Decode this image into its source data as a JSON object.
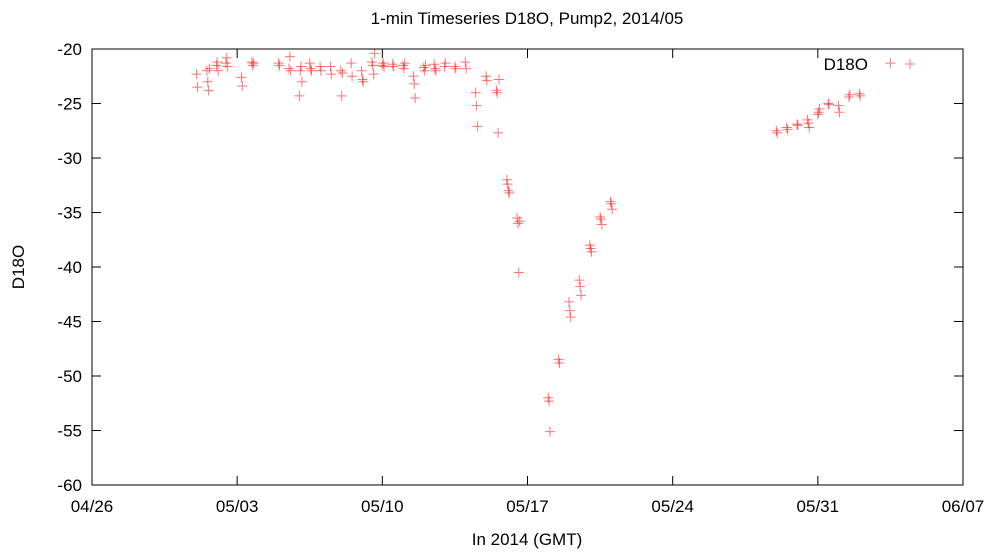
{
  "chart_data": {
    "type": "scatter",
    "title": "1-min Timeseries D18O, Pump2, 2014/05",
    "xlabel": "In 2014 (GMT)",
    "ylabel": "D18O",
    "x_is_date": true,
    "xlim": [
      "2014-04-26",
      "2014-06-07"
    ],
    "ylim": [
      -60,
      -20
    ],
    "xticks": [
      {
        "date": "2014-04-26",
        "label": "04/26"
      },
      {
        "date": "2014-05-03",
        "label": "05/03"
      },
      {
        "date": "2014-05-10",
        "label": "05/10"
      },
      {
        "date": "2014-05-17",
        "label": "05/17"
      },
      {
        "date": "2014-05-24",
        "label": "05/24"
      },
      {
        "date": "2014-05-31",
        "label": "05/31"
      },
      {
        "date": "2014-06-07",
        "label": "06/07"
      }
    ],
    "yticks": [
      -60,
      -55,
      -50,
      -45,
      -40,
      -35,
      -30,
      -25,
      -20
    ],
    "grid": false,
    "legend": {
      "position": "top-right",
      "entries": [
        {
          "label": "D18O",
          "color": "#ff0000",
          "marker": "plus"
        }
      ]
    },
    "series": [
      {
        "name": "D18O",
        "color": "#ff0000",
        "marker": "plus",
        "points": [
          [
            "2014-05-01T01:00",
            -22.3
          ],
          [
            "2014-05-01T02:00",
            -23.5
          ],
          [
            "2014-05-01T13:00",
            -22.0
          ],
          [
            "2014-05-01T14:00",
            -23.0
          ],
          [
            "2014-05-01T15:00",
            -23.8
          ],
          [
            "2014-05-01T16:00",
            -21.8
          ],
          [
            "2014-05-02T00:00",
            -21.5
          ],
          [
            "2014-05-02T01:00",
            -21.2
          ],
          [
            "2014-05-02T02:00",
            -22.0
          ],
          [
            "2014-05-02T11:00",
            -21.3
          ],
          [
            "2014-05-02T12:00",
            -20.8
          ],
          [
            "2014-05-02T13:00",
            -21.6
          ],
          [
            "2014-05-03T05:00",
            -22.6
          ],
          [
            "2014-05-03T06:00",
            -23.4
          ],
          [
            "2014-05-03T17:00",
            -21.2
          ],
          [
            "2014-05-03T18:00",
            -21.5
          ],
          [
            "2014-05-03T19:00",
            -21.3
          ],
          [
            "2014-05-05T00:00",
            -21.3
          ],
          [
            "2014-05-05T01:00",
            -21.5
          ],
          [
            "2014-05-05T12:00",
            -21.8
          ],
          [
            "2014-05-05T13:00",
            -20.7
          ],
          [
            "2014-05-05T14:00",
            -22.0
          ],
          [
            "2014-05-06T00:00",
            -24.3
          ],
          [
            "2014-05-06T01:00",
            -22.0
          ],
          [
            "2014-05-06T02:00",
            -21.6
          ],
          [
            "2014-05-06T03:00",
            -23.0
          ],
          [
            "2014-05-06T12:00",
            -21.3
          ],
          [
            "2014-05-06T13:00",
            -21.8
          ],
          [
            "2014-05-06T14:00",
            -22.0
          ],
          [
            "2014-05-07T00:00",
            -21.6
          ],
          [
            "2014-05-07T01:00",
            -22.0
          ],
          [
            "2014-05-07T12:00",
            -21.6
          ],
          [
            "2014-05-07T13:00",
            -22.3
          ],
          [
            "2014-05-08T00:00",
            -22.0
          ],
          [
            "2014-05-08T01:00",
            -24.3
          ],
          [
            "2014-05-08T02:00",
            -22.2
          ],
          [
            "2014-05-08T12:00",
            -21.3
          ],
          [
            "2014-05-08T13:00",
            -22.5
          ],
          [
            "2014-05-09T00:00",
            -22.0
          ],
          [
            "2014-05-09T01:00",
            -22.8
          ],
          [
            "2014-05-09T02:00",
            -23.0
          ],
          [
            "2014-05-09T12:00",
            -21.2
          ],
          [
            "2014-05-09T13:00",
            -21.5
          ],
          [
            "2014-05-09T14:00",
            -22.3
          ],
          [
            "2014-05-09T15:00",
            -20.4
          ],
          [
            "2014-05-10T00:00",
            -21.5
          ],
          [
            "2014-05-10T01:00",
            -21.3
          ],
          [
            "2014-05-10T02:00",
            -21.6
          ],
          [
            "2014-05-10T12:00",
            -21.4
          ],
          [
            "2014-05-10T13:00",
            -21.6
          ],
          [
            "2014-05-11T00:00",
            -21.5
          ],
          [
            "2014-05-11T01:00",
            -21.8
          ],
          [
            "2014-05-11T02:00",
            -21.3
          ],
          [
            "2014-05-11T12:00",
            -22.5
          ],
          [
            "2014-05-11T13:00",
            -23.2
          ],
          [
            "2014-05-11T14:00",
            -24.5
          ],
          [
            "2014-05-12T00:00",
            -21.7
          ],
          [
            "2014-05-12T01:00",
            -22.0
          ],
          [
            "2014-05-12T02:00",
            -21.5
          ],
          [
            "2014-05-12T12:00",
            -21.4
          ],
          [
            "2014-05-12T13:00",
            -21.8
          ],
          [
            "2014-05-12T14:00",
            -22.0
          ],
          [
            "2014-05-13T00:00",
            -21.6
          ],
          [
            "2014-05-13T01:00",
            -21.3
          ],
          [
            "2014-05-13T12:00",
            -21.6
          ],
          [
            "2014-05-13T13:00",
            -21.8
          ],
          [
            "2014-05-14T00:00",
            -21.2
          ],
          [
            "2014-05-14T01:00",
            -21.8
          ],
          [
            "2014-05-14T12:00",
            -24.0
          ],
          [
            "2014-05-14T13:00",
            -25.2
          ],
          [
            "2014-05-14T14:00",
            -27.1
          ],
          [
            "2014-05-15T00:00",
            -22.5
          ],
          [
            "2014-05-15T01:00",
            -22.9
          ],
          [
            "2014-05-15T12:00",
            -23.8
          ],
          [
            "2014-05-15T13:00",
            -24.0
          ],
          [
            "2014-05-15T14:00",
            -27.7
          ],
          [
            "2014-05-15T15:00",
            -22.8
          ],
          [
            "2014-05-16T00:00",
            -32.0
          ],
          [
            "2014-05-16T01:00",
            -32.4
          ],
          [
            "2014-05-16T02:00",
            -33.0
          ],
          [
            "2014-05-16T03:00",
            -33.2
          ],
          [
            "2014-05-16T12:00",
            -35.5
          ],
          [
            "2014-05-16T13:00",
            -36.0
          ],
          [
            "2014-05-16T14:00",
            -40.5
          ],
          [
            "2014-05-16T15:00",
            -35.8
          ],
          [
            "2014-05-18T00:00",
            -52.0
          ],
          [
            "2014-05-18T01:00",
            -52.3
          ],
          [
            "2014-05-18T02:00",
            -55.1
          ],
          [
            "2014-05-18T12:00",
            -48.5
          ],
          [
            "2014-05-18T13:00",
            -48.8
          ],
          [
            "2014-05-19T00:00",
            -43.2
          ],
          [
            "2014-05-19T01:00",
            -44.0
          ],
          [
            "2014-05-19T02:00",
            -44.6
          ],
          [
            "2014-05-19T12:00",
            -41.2
          ],
          [
            "2014-05-19T13:00",
            -41.8
          ],
          [
            "2014-05-19T14:00",
            -42.6
          ],
          [
            "2014-05-20T00:00",
            -38.0
          ],
          [
            "2014-05-20T01:00",
            -38.3
          ],
          [
            "2014-05-20T02:00",
            -38.6
          ],
          [
            "2014-05-20T12:00",
            -35.4
          ],
          [
            "2014-05-20T13:00",
            -35.6
          ],
          [
            "2014-05-20T14:00",
            -36.1
          ],
          [
            "2014-05-21T00:00",
            -34.0
          ],
          [
            "2014-05-21T01:00",
            -34.2
          ],
          [
            "2014-05-21T02:00",
            -34.7
          ],
          [
            "2014-05-29T00:00",
            -27.5
          ],
          [
            "2014-05-29T01:00",
            -27.7
          ],
          [
            "2014-05-29T12:00",
            -27.2
          ],
          [
            "2014-05-29T13:00",
            -27.4
          ],
          [
            "2014-05-30T00:00",
            -26.9
          ],
          [
            "2014-05-30T01:00",
            -27.0
          ],
          [
            "2014-05-30T12:00",
            -26.5
          ],
          [
            "2014-05-30T13:00",
            -26.8
          ],
          [
            "2014-05-30T14:00",
            -27.2
          ],
          [
            "2014-05-31T00:00",
            -26.0
          ],
          [
            "2014-05-31T01:00",
            -25.8
          ],
          [
            "2014-05-31T02:00",
            -25.5
          ],
          [
            "2014-05-31T12:00",
            -25.0
          ],
          [
            "2014-05-31T13:00",
            -25.1
          ],
          [
            "2014-06-01T00:00",
            -25.2
          ],
          [
            "2014-06-01T01:00",
            -25.8
          ],
          [
            "2014-06-01T12:00",
            -24.4
          ],
          [
            "2014-06-01T13:00",
            -24.2
          ],
          [
            "2014-06-02T00:00",
            -24.1
          ],
          [
            "2014-06-02T01:00",
            -24.3
          ],
          [
            "2014-06-03T12:00",
            -21.3
          ]
        ]
      }
    ]
  }
}
